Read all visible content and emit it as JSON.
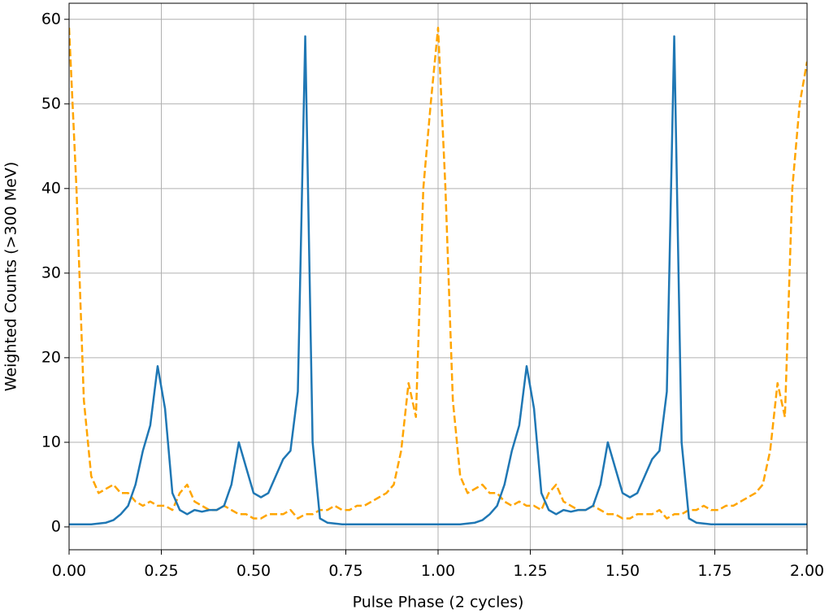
{
  "chart_data": {
    "type": "line",
    "x_label": "Pulse Phase (2 cycles)",
    "y_label": "Weighted Counts (>300 MeV)",
    "x": [
      0,
      0.02,
      0.04,
      0.06,
      0.08,
      0.1,
      0.12,
      0.14,
      0.16,
      0.18,
      0.2,
      0.22,
      0.24,
      0.26,
      0.28,
      0.3,
      0.32,
      0.34,
      0.36,
      0.38,
      0.4,
      0.42,
      0.44,
      0.46,
      0.48,
      0.5,
      0.52,
      0.54,
      0.56,
      0.58,
      0.6,
      0.62,
      0.64,
      0.66,
      0.68,
      0.7,
      0.72,
      0.74,
      0.76,
      0.78,
      0.8,
      0.82,
      0.84,
      0.86,
      0.88,
      0.9,
      0.92,
      0.94,
      0.96,
      0.98,
      1,
      1.02,
      1.04,
      1.06,
      1.08,
      1.1,
      1.12,
      1.14,
      1.16,
      1.18,
      1.2,
      1.22,
      1.24,
      1.26,
      1.28,
      1.3,
      1.32,
      1.34,
      1.36,
      1.38,
      1.4,
      1.42,
      1.44,
      1.46,
      1.48,
      1.5,
      1.52,
      1.54,
      1.56,
      1.58,
      1.6,
      1.62,
      1.64,
      1.66,
      1.68,
      1.7,
      1.72,
      1.74,
      1.76,
      1.78,
      1.8,
      1.82,
      1.84,
      1.86,
      1.88,
      1.9,
      1.92,
      1.94,
      1.96,
      1.98,
      2
    ],
    "series": [
      {
        "color": "#1f77b4",
        "style": "solid",
        "values": [
          0.3,
          0.3,
          0.3,
          0.3,
          0.4,
          0.5,
          0.8,
          1.5,
          2.5,
          5,
          9,
          12,
          19,
          14,
          4,
          2,
          1.5,
          2,
          1.8,
          2,
          2,
          2.5,
          5,
          10,
          7,
          4,
          3.5,
          4,
          6,
          8,
          9,
          16,
          58,
          10,
          1,
          0.5,
          0.4,
          0.3,
          0.3,
          0.3,
          0.3,
          0.3,
          0.3,
          0.3,
          0.3,
          0.3,
          0.3,
          0.3,
          0.3,
          0.3,
          0.3,
          0.3,
          0.3,
          0.3,
          0.4,
          0.5,
          0.8,
          1.5,
          2.5,
          5,
          9,
          12,
          19,
          14,
          4,
          2,
          1.5,
          2,
          1.8,
          2,
          2,
          2.5,
          5,
          10,
          7,
          4,
          3.5,
          4,
          6,
          8,
          9,
          16,
          58,
          10,
          1,
          0.5,
          0.4,
          0.3,
          0.3,
          0.3,
          0.3,
          0.3,
          0.3,
          0.3,
          0.3,
          0.3,
          0.3,
          0.3,
          0.3,
          0.3,
          0.3
        ]
      },
      {
        "color": "#ffa500",
        "style": "dashed",
        "values": [
          59,
          40,
          15,
          6,
          4,
          4.5,
          5,
          4,
          4,
          3,
          2.5,
          3,
          2.5,
          2.5,
          2,
          4,
          5,
          3,
          2.5,
          2,
          2,
          2.5,
          2,
          1.5,
          1.5,
          1,
          1,
          1.5,
          1.5,
          1.5,
          2,
          1,
          1.5,
          1.5,
          2,
          2,
          2.5,
          2,
          2,
          2.5,
          2.5,
          3,
          3.5,
          4,
          5,
          9,
          17,
          13,
          40,
          50,
          59,
          40,
          15,
          6,
          4,
          4.5,
          5,
          4,
          4,
          3,
          2.5,
          3,
          2.5,
          2.5,
          2,
          4,
          5,
          3,
          2.5,
          2,
          2,
          2.5,
          2,
          1.5,
          1.5,
          1,
          1,
          1.5,
          1.5,
          1.5,
          2,
          1,
          1.5,
          1.5,
          2,
          2,
          2.5,
          2,
          2,
          2.5,
          2.5,
          3,
          3.5,
          4,
          5,
          9,
          17,
          13,
          40,
          50,
          55
        ]
      }
    ],
    "xlim": [
      0,
      2
    ],
    "ylim": [
      -2.7,
      61.9
    ],
    "xticks": [
      {
        "value": 0,
        "label": "0.00"
      },
      0.25,
      {
        "value": 0.5,
        "label": "0.50"
      },
      0.75,
      {
        "value": 1,
        "label": "1.00"
      },
      1.25,
      {
        "value": 1.5,
        "label": "1.50"
      },
      1.75,
      {
        "value": 2,
        "label": "2.00"
      }
    ],
    "yticks": [
      0,
      10,
      20,
      30,
      40,
      50,
      60
    ],
    "grid": true
  }
}
